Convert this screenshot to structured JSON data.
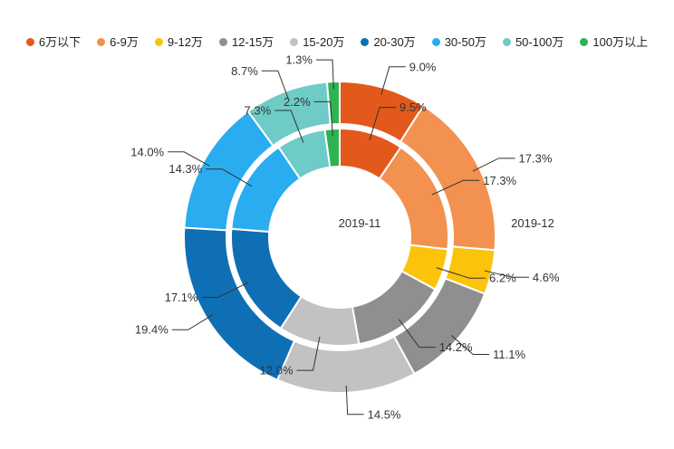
{
  "chart_data": {
    "type": "pie",
    "variant": "nested-donut",
    "legend_position": "top",
    "labels_unit": "%",
    "categories": [
      "6万以下",
      "6-9万",
      "9-12万",
      "12-15万",
      "15-20万",
      "20-30万",
      "30-50万",
      "50-100万",
      "100万以上"
    ],
    "colors": [
      "#e2591b",
      "#f29150",
      "#fcc30b",
      "#8f8f8f",
      "#c2c2c2",
      "#0f6fb4",
      "#2aacf0",
      "#6ecbc6",
      "#2eb353"
    ],
    "series": [
      {
        "name": "2019-11",
        "ring": "inner",
        "values": [
          9.5,
          17.3,
          6.2,
          14.2,
          12.0,
          17.1,
          14.3,
          7.3,
          2.2
        ]
      },
      {
        "name": "2019-12",
        "ring": "outer",
        "values": [
          9.0,
          17.3,
          4.6,
          11.1,
          14.5,
          19.4,
          14.0,
          8.7,
          1.3
        ]
      }
    ],
    "text_color": "#333333",
    "label_line_color": "#333333"
  }
}
